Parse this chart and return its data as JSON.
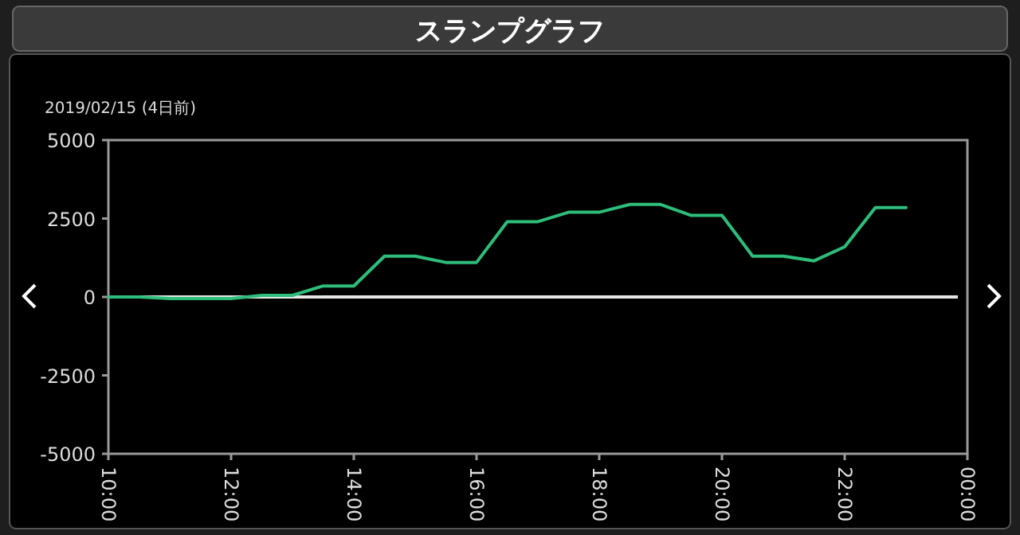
{
  "chart_data": {
    "type": "line",
    "title": "スランプグラフ",
    "subtitle": "2019/02/15 (4日前)",
    "x": [
      10,
      10.5,
      11,
      11.5,
      12,
      12.5,
      13,
      13.5,
      14,
      14.5,
      15,
      15.5,
      16,
      16.5,
      17,
      17.5,
      18,
      18.5,
      19,
      19.5,
      20,
      20.5,
      21,
      21.5,
      22,
      22.5,
      23
    ],
    "series": [
      {
        "color": "#2ebd7a",
        "values": [
          0,
          0,
          -50,
          -50,
          -50,
          50,
          50,
          350,
          350,
          1300,
          1300,
          1100,
          1100,
          2400,
          2400,
          2700,
          2700,
          2950,
          2950,
          2600,
          2600,
          1300,
          1300,
          1150,
          1600,
          2850,
          2850
        ]
      }
    ],
    "xlim": [
      10,
      24
    ],
    "xticks": [
      {
        "value": 10,
        "label": "10:00"
      },
      {
        "value": 12,
        "label": "12:00"
      },
      {
        "value": 14,
        "label": "14:00"
      },
      {
        "value": 16,
        "label": "16:00"
      },
      {
        "value": 18,
        "label": "18:00"
      },
      {
        "value": 20,
        "label": "20:00"
      },
      {
        "value": 22,
        "label": "22:00"
      },
      {
        "value": 24,
        "label": "00:00"
      }
    ],
    "ylim": [
      -5000,
      5000
    ],
    "yticks": [
      -5000,
      -2500,
      0,
      2500,
      5000
    ],
    "ref_lines": [
      {
        "axis": "y",
        "value": 0,
        "color": "#e6e6e6"
      }
    ],
    "grid": false
  }
}
